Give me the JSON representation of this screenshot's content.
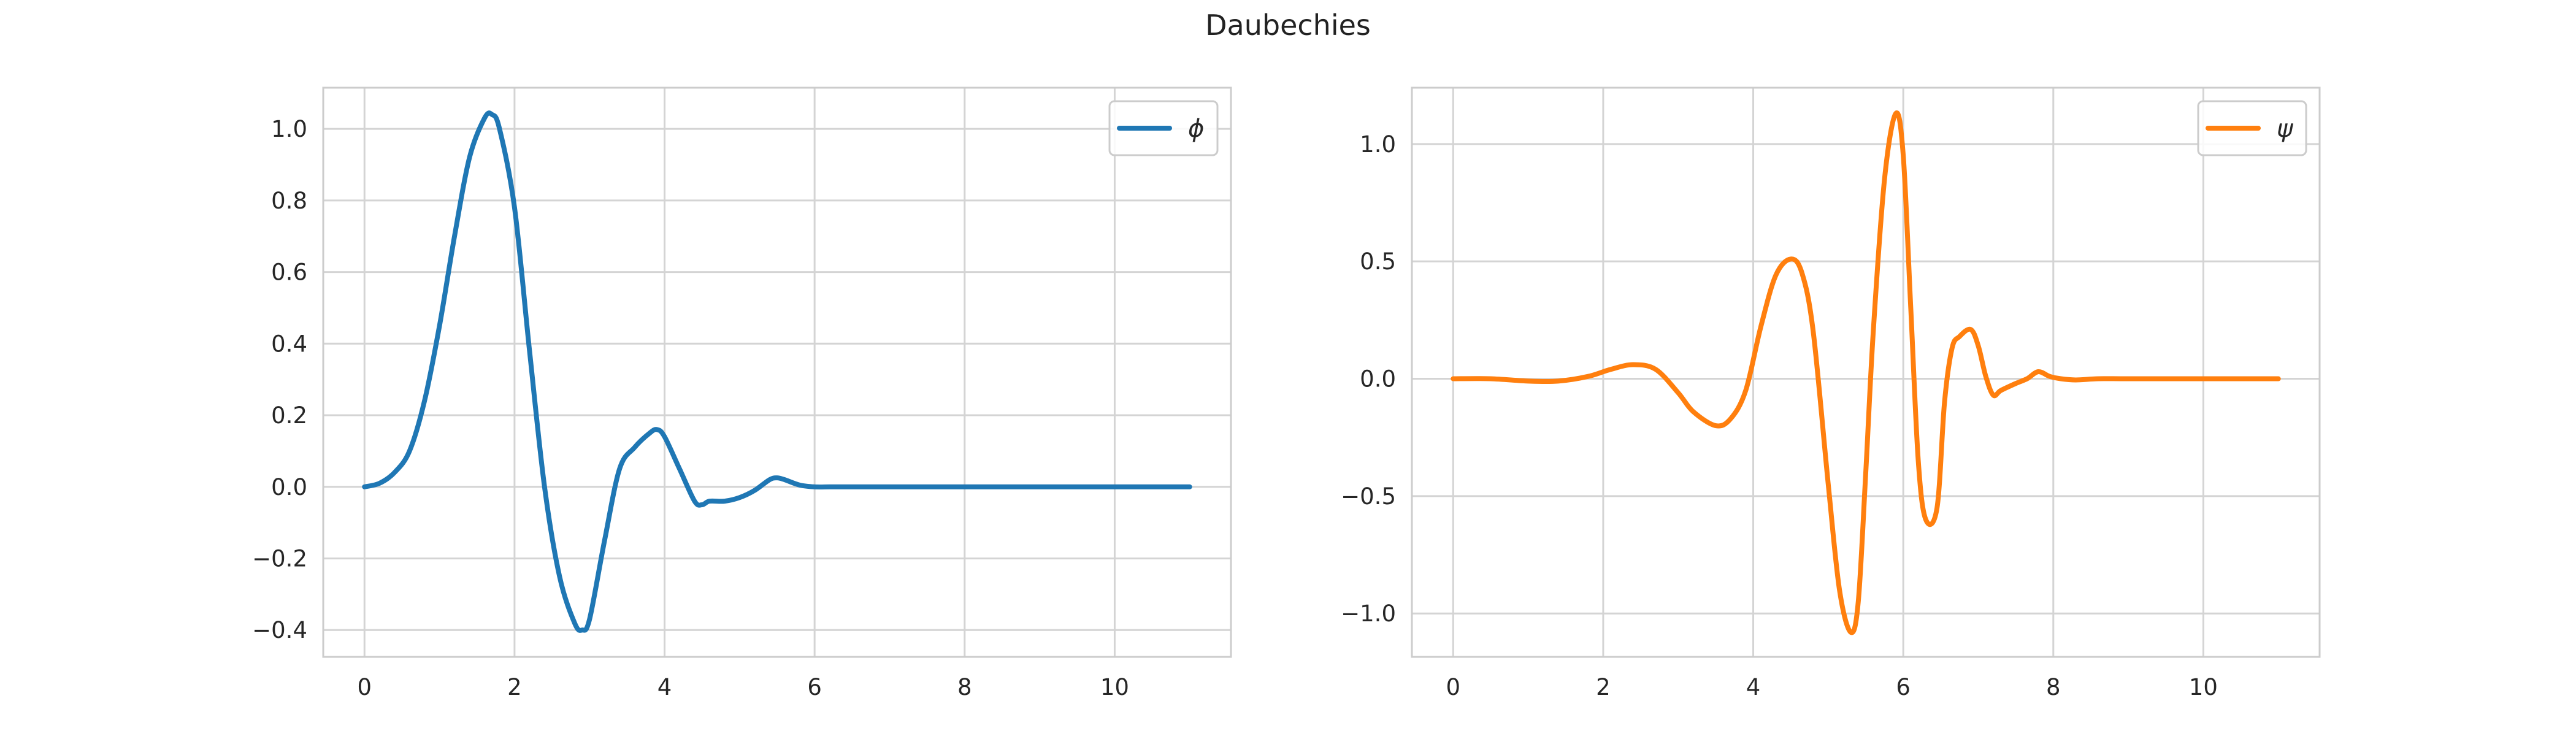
{
  "figure": {
    "title": "Daubechies"
  },
  "chart_data": [
    {
      "type": "line",
      "title": "",
      "xlabel": "",
      "ylabel": "",
      "xlim": [
        -0.55,
        11.55
      ],
      "ylim": [
        -0.475,
        1.115
      ],
      "xticks": [
        0,
        2,
        4,
        6,
        8,
        10
      ],
      "xtick_labels": [
        "0",
        "2",
        "4",
        "6",
        "8",
        "10"
      ],
      "yticks": [
        -0.4,
        -0.2,
        0.0,
        0.2,
        0.4,
        0.6,
        0.8,
        1.0
      ],
      "ytick_labels": [
        "−0.4",
        "−0.2",
        "0.0",
        "0.2",
        "0.4",
        "0.6",
        "0.8",
        "1.0"
      ],
      "grid": true,
      "legend": "upper right",
      "series": [
        {
          "name": "ϕ",
          "color": "#1f77b4",
          "x": [
            0,
            0.2,
            0.4,
            0.6,
            0.8,
            1.0,
            1.2,
            1.4,
            1.6,
            1.7,
            1.8,
            2.0,
            2.2,
            2.4,
            2.6,
            2.8,
            2.9,
            3.0,
            3.2,
            3.4,
            3.6,
            3.8,
            3.9,
            4.0,
            4.2,
            4.4,
            4.5,
            4.6,
            4.8,
            5.0,
            5.2,
            5.4,
            5.5,
            5.6,
            5.8,
            6.0,
            6.2,
            6.4,
            6.6,
            7.0,
            7.4,
            8.0,
            9.0,
            10.0,
            11.0
          ],
          "y": [
            0,
            0.01,
            0.04,
            0.1,
            0.24,
            0.45,
            0.7,
            0.92,
            1.03,
            1.04,
            1.0,
            0.78,
            0.38,
            0.0,
            -0.25,
            -0.38,
            -0.4,
            -0.37,
            -0.15,
            0.05,
            0.11,
            0.15,
            0.16,
            0.14,
            0.05,
            -0.04,
            -0.05,
            -0.04,
            -0.04,
            -0.03,
            -0.01,
            0.02,
            0.025,
            0.02,
            0.005,
            0.0,
            0.0,
            0.0,
            0.0,
            0.0,
            0.0,
            0.0,
            0.0,
            0.0,
            0.0
          ]
        }
      ]
    },
    {
      "type": "line",
      "title": "",
      "xlabel": "",
      "ylabel": "",
      "xlim": [
        -0.55,
        11.55
      ],
      "ylim": [
        -1.185,
        1.24
      ],
      "xticks": [
        0,
        2,
        4,
        6,
        8,
        10
      ],
      "xtick_labels": [
        "0",
        "2",
        "4",
        "6",
        "8",
        "10"
      ],
      "yticks": [
        -1.0,
        -0.5,
        0.0,
        0.5,
        1.0
      ],
      "ytick_labels": [
        "−1.0",
        "−0.5",
        "0.0",
        "0.5",
        "1.0"
      ],
      "grid": true,
      "legend": "upper right",
      "series": [
        {
          "name": "ψ",
          "color": "#ff7f0e",
          "x": [
            0,
            0.5,
            1.0,
            1.4,
            1.8,
            2.1,
            2.4,
            2.7,
            3.0,
            3.2,
            3.5,
            3.7,
            3.9,
            4.1,
            4.3,
            4.5,
            4.65,
            4.8,
            5.0,
            5.15,
            5.3,
            5.4,
            5.5,
            5.6,
            5.75,
            5.9,
            6.0,
            6.1,
            6.2,
            6.3,
            6.45,
            6.55,
            6.65,
            6.75,
            6.9,
            7.0,
            7.1,
            7.2,
            7.3,
            7.5,
            7.65,
            7.8,
            7.95,
            8.1,
            8.3,
            8.6,
            9.0,
            10.0,
            11.0
          ],
          "y": [
            0,
            0.0,
            -0.01,
            -0.01,
            0.01,
            0.04,
            0.06,
            0.04,
            -0.06,
            -0.14,
            -0.2,
            -0.17,
            -0.05,
            0.22,
            0.44,
            0.51,
            0.45,
            0.2,
            -0.45,
            -0.9,
            -1.08,
            -0.95,
            -0.4,
            0.2,
            0.85,
            1.13,
            0.95,
            0.3,
            -0.35,
            -0.6,
            -0.55,
            -0.1,
            0.13,
            0.18,
            0.21,
            0.14,
            0.01,
            -0.07,
            -0.05,
            -0.02,
            0.0,
            0.03,
            0.01,
            0.0,
            -0.005,
            0.0,
            0.0,
            0.0,
            0.0
          ]
        }
      ]
    }
  ]
}
